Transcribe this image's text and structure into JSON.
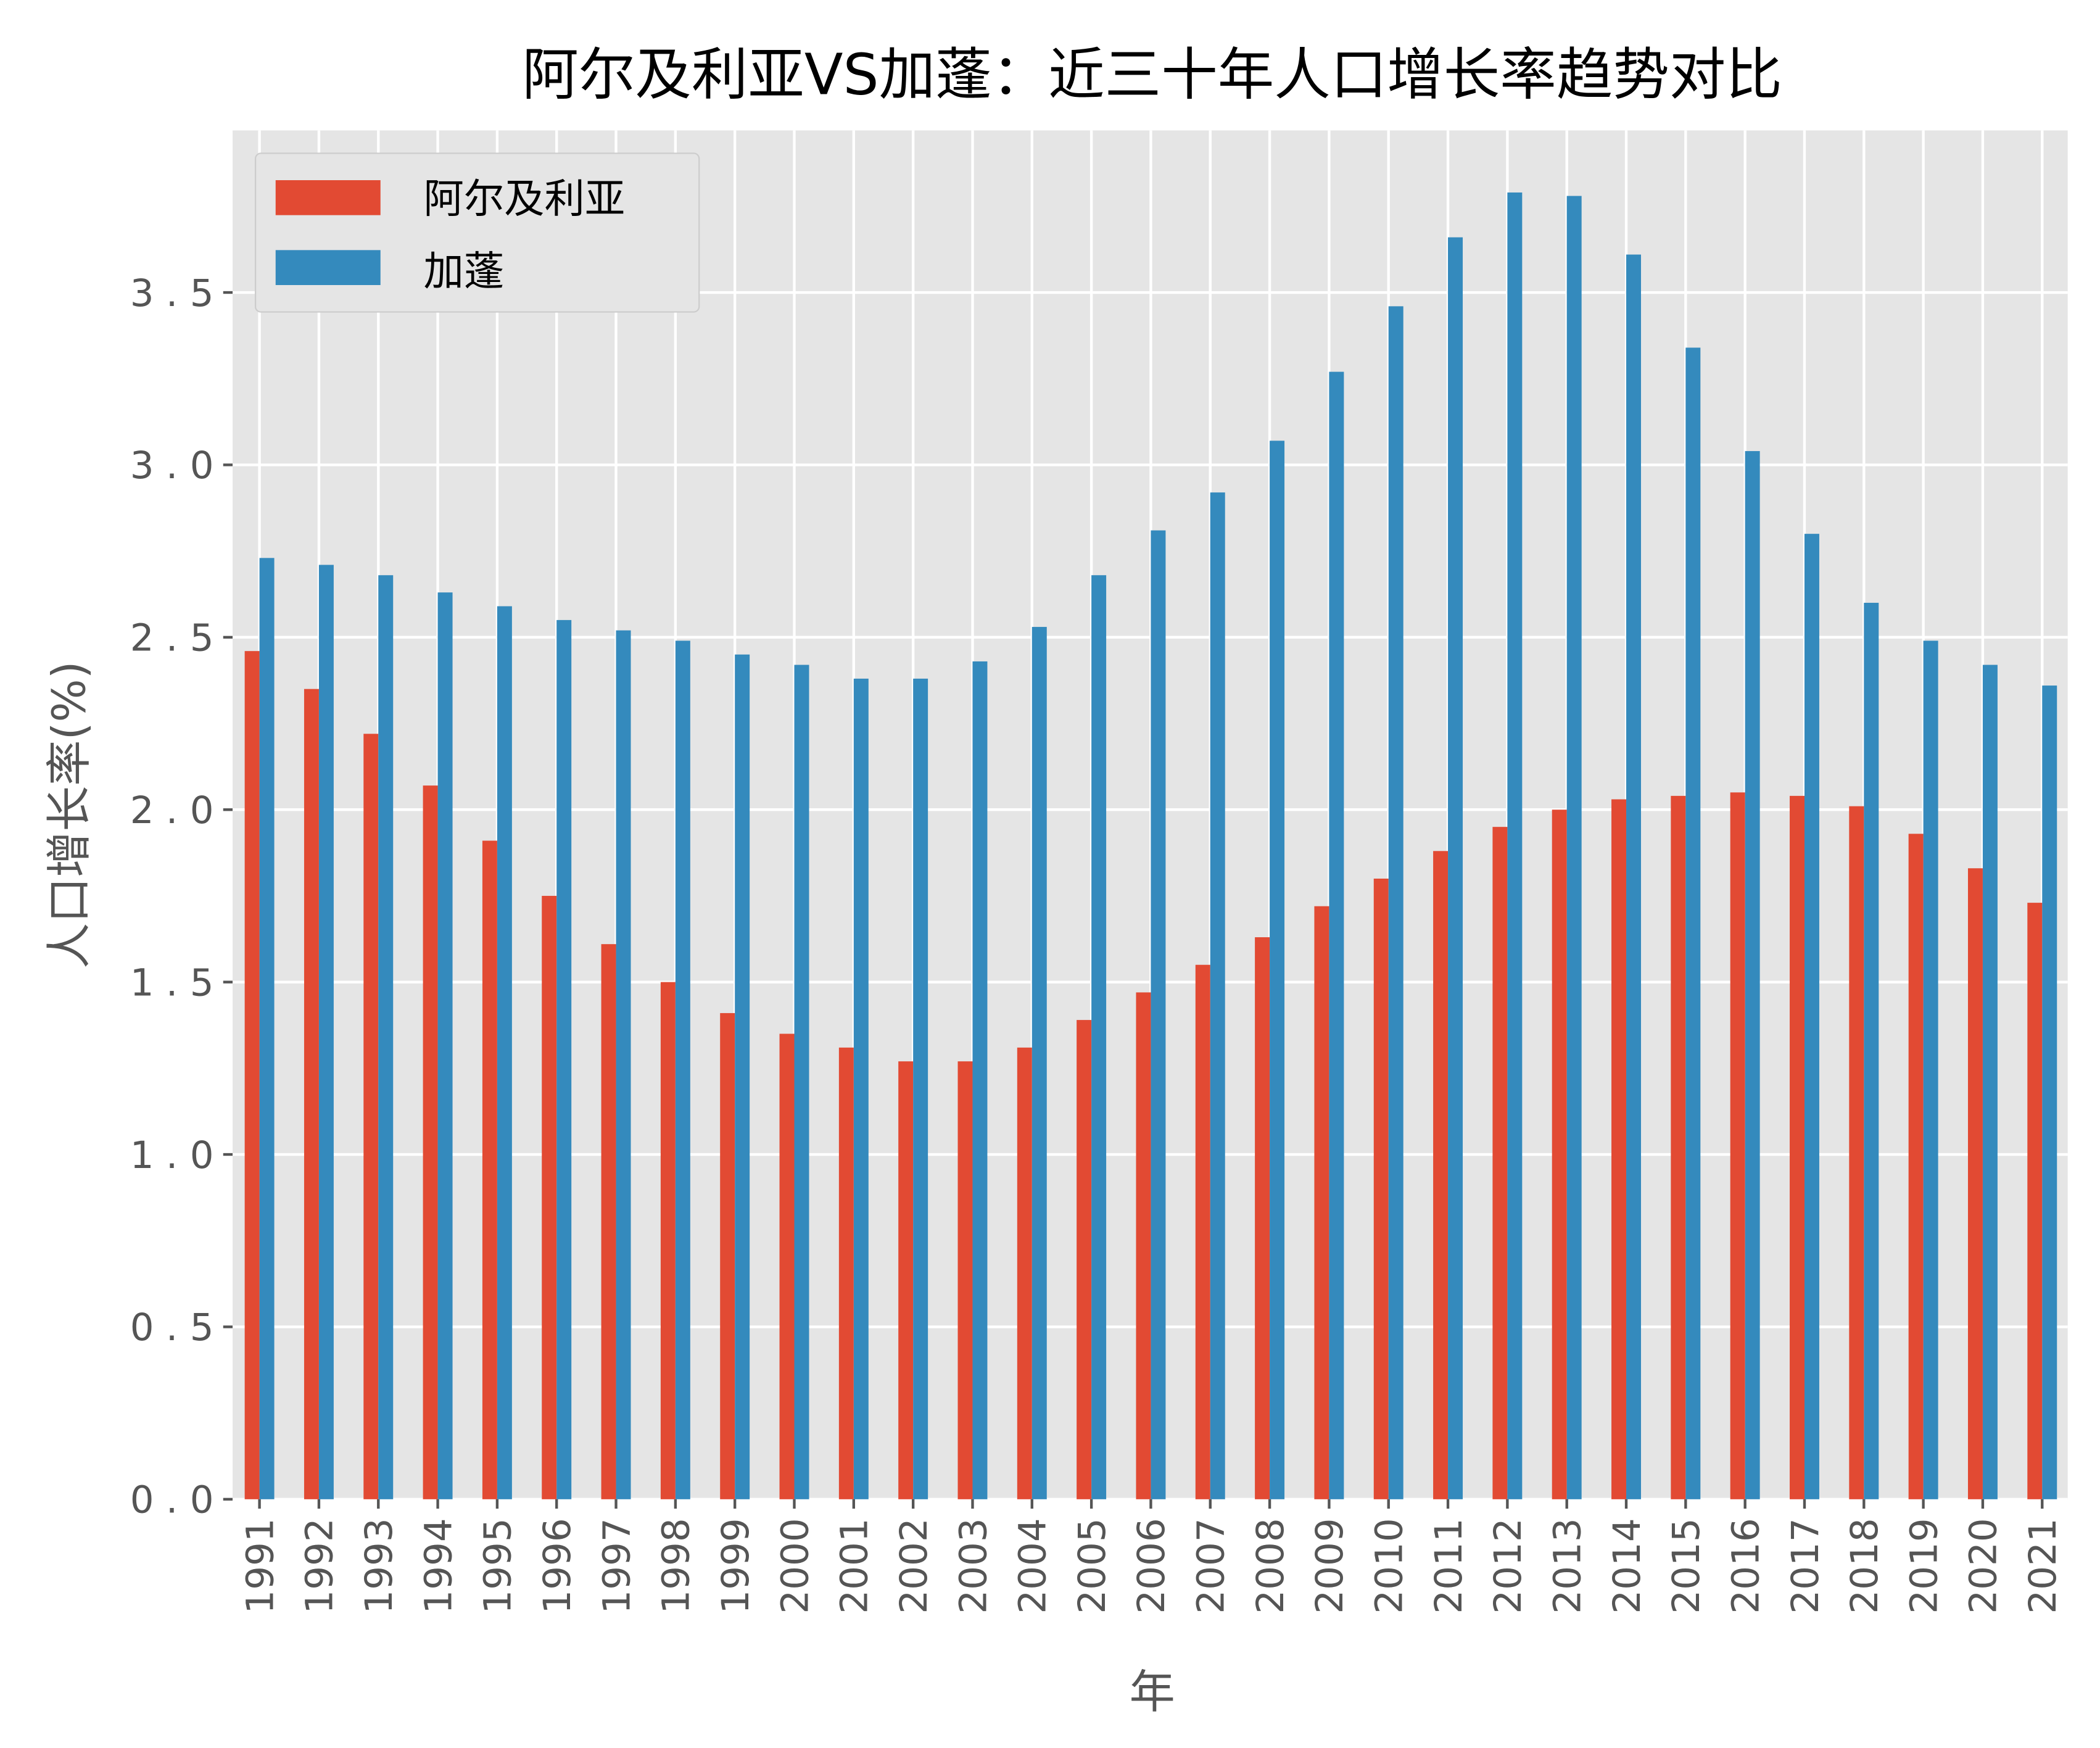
{
  "chart_data": {
    "type": "bar",
    "title": "阿尔及利亚VS加蓬：近三十年人口增长率趋势对比",
    "xlabel": "年",
    "ylabel": "人口增长率(%)",
    "ylim": [
      0,
      3.97
    ],
    "yticks": [
      "0.0",
      "0.5",
      "1.0",
      "1.5",
      "2.0",
      "2.5",
      "3.0",
      "3.5"
    ],
    "grid": true,
    "legend_placement": "top-left",
    "categories": [
      "1991",
      "1992",
      "1993",
      "1994",
      "1995",
      "1996",
      "1997",
      "1998",
      "1999",
      "2000",
      "2001",
      "2002",
      "2003",
      "2004",
      "2005",
      "2006",
      "2007",
      "2008",
      "2009",
      "2010",
      "2011",
      "2012",
      "2013",
      "2014",
      "2015",
      "2016",
      "2017",
      "2018",
      "2019",
      "2020",
      "2021"
    ],
    "series": [
      {
        "name": "阿尔及利亚",
        "color": "#E24A33",
        "values": [
          2.46,
          2.35,
          2.22,
          2.07,
          1.91,
          1.75,
          1.61,
          1.5,
          1.41,
          1.35,
          1.31,
          1.27,
          1.27,
          1.31,
          1.39,
          1.47,
          1.55,
          1.63,
          1.72,
          1.8,
          1.88,
          1.95,
          2.0,
          2.03,
          2.04,
          2.05,
          2.04,
          2.01,
          1.93,
          1.83,
          1.73
        ]
      },
      {
        "name": "加蓬",
        "color": "#348ABD",
        "values": [
          2.73,
          2.71,
          2.68,
          2.63,
          2.59,
          2.55,
          2.52,
          2.49,
          2.45,
          2.42,
          2.38,
          2.38,
          2.43,
          2.53,
          2.68,
          2.81,
          2.92,
          3.07,
          3.27,
          3.46,
          3.66,
          3.79,
          3.78,
          3.61,
          3.34,
          3.04,
          2.8,
          2.6,
          2.49,
          2.42,
          2.36
        ]
      }
    ]
  }
}
